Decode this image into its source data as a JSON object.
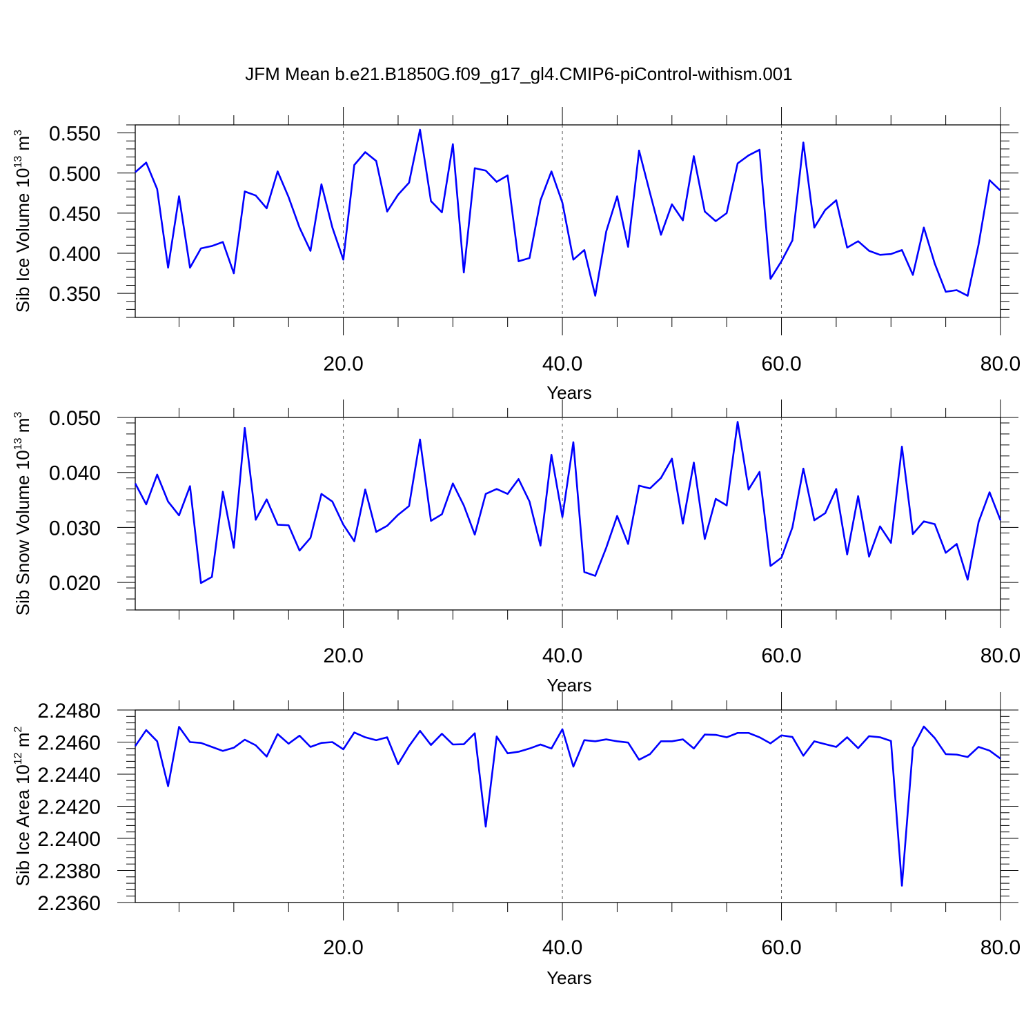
{
  "title": "JFM Mean b.e21.B1850G.f09_g17_gl4.CMIP6-piControl-withism.001",
  "chart_data": [
    {
      "type": "line",
      "xlabel": "Years",
      "ylabel": {
        "pre": "Sib Ice Volume 10",
        "exp": "13",
        "mid": " m",
        "unit_exp": "3"
      },
      "xlim": [
        1,
        80
      ],
      "ylim": [
        0.32,
        0.56
      ],
      "xticks": [
        "20.0",
        "40.0",
        "60.0",
        "80.0"
      ],
      "yticks": [
        "0.350",
        "0.400",
        "0.450",
        "0.500",
        "0.550"
      ],
      "color": "#0000ff",
      "x_start": 1,
      "values": [
        0.501,
        0.513,
        0.48,
        0.382,
        0.471,
        0.382,
        0.406,
        0.409,
        0.414,
        0.375,
        0.477,
        0.472,
        0.456,
        0.502,
        0.47,
        0.432,
        0.403,
        0.486,
        0.432,
        0.392,
        0.51,
        0.526,
        0.515,
        0.452,
        0.473,
        0.488,
        0.554,
        0.465,
        0.451,
        0.536,
        0.376,
        0.506,
        0.503,
        0.489,
        0.497,
        0.39,
        0.394,
        0.466,
        0.502,
        0.463,
        0.392,
        0.404,
        0.347,
        0.427,
        0.471,
        0.408,
        0.528,
        0.475,
        0.423,
        0.461,
        0.441,
        0.521,
        0.452,
        0.44,
        0.45,
        0.512,
        0.522,
        0.529,
        0.368,
        0.39,
        0.416,
        0.538,
        0.432,
        0.454,
        0.466,
        0.407,
        0.415,
        0.403,
        0.398,
        0.399,
        0.404,
        0.373,
        0.432,
        0.387,
        0.352,
        0.354,
        0.347,
        0.411,
        0.491,
        0.478
      ]
    },
    {
      "type": "line",
      "xlabel": "Years",
      "ylabel": {
        "pre": "Sib Snow Volume 10",
        "exp": "13",
        "mid": " m",
        "unit_exp": "3"
      },
      "xlim": [
        1,
        80
      ],
      "ylim": [
        0.015,
        0.05
      ],
      "xticks": [
        "20.0",
        "40.0",
        "60.0",
        "80.0"
      ],
      "yticks": [
        "0.020",
        "0.030",
        "0.040",
        "0.050"
      ],
      "color": "#0000ff",
      "x_start": 1,
      "values": [
        0.038,
        0.0342,
        0.0396,
        0.0347,
        0.0322,
        0.0375,
        0.0199,
        0.021,
        0.0365,
        0.0263,
        0.0481,
        0.0314,
        0.0351,
        0.0305,
        0.0304,
        0.0258,
        0.0281,
        0.0361,
        0.0347,
        0.0305,
        0.0275,
        0.0369,
        0.0292,
        0.0303,
        0.0323,
        0.0339,
        0.046,
        0.0312,
        0.0324,
        0.038,
        0.034,
        0.0287,
        0.0361,
        0.037,
        0.0361,
        0.0388,
        0.0347,
        0.0267,
        0.0432,
        0.0319,
        0.0455,
        0.0219,
        0.0212,
        0.0263,
        0.0321,
        0.027,
        0.0376,
        0.0371,
        0.039,
        0.0425,
        0.0307,
        0.0418,
        0.0279,
        0.0352,
        0.034,
        0.0492,
        0.0369,
        0.0401,
        0.023,
        0.0245,
        0.03,
        0.0407,
        0.0313,
        0.0326,
        0.037,
        0.0251,
        0.0357,
        0.0247,
        0.0302,
        0.0272,
        0.0447,
        0.0288,
        0.0311,
        0.0306,
        0.0254,
        0.027,
        0.0205,
        0.031,
        0.0364,
        0.0313
      ]
    },
    {
      "type": "line",
      "xlabel": "Years",
      "ylabel": {
        "pre": "Sib Ice Area 10",
        "exp": "12",
        "mid": " m",
        "unit_exp": "2"
      },
      "xlim": [
        1,
        80
      ],
      "ylim": [
        2.236,
        2.248
      ],
      "xticks": [
        "20.0",
        "40.0",
        "60.0",
        "80.0"
      ],
      "yticks": [
        "2.2360",
        "2.2380",
        "2.2400",
        "2.2420",
        "2.2440",
        "2.2460",
        "2.2480"
      ],
      "color": "#0000ff",
      "x_start": 1,
      "values": [
        2.24575,
        2.24675,
        2.24605,
        2.24325,
        2.24695,
        2.246,
        2.24595,
        2.2457,
        2.24545,
        2.24565,
        2.24615,
        2.2458,
        2.2451,
        2.2465,
        2.2459,
        2.2464,
        2.2457,
        2.24595,
        2.246,
        2.24555,
        2.2466,
        2.2463,
        2.24612,
        2.2463,
        2.24462,
        2.24575,
        2.2467,
        2.24582,
        2.24652,
        2.24585,
        2.24587,
        2.24655,
        2.24073,
        2.24635,
        2.2453,
        2.2454,
        2.2456,
        2.24585,
        2.2456,
        2.2468,
        2.24447,
        2.24612,
        2.24605,
        2.24617,
        2.24605,
        2.24597,
        2.2449,
        2.24525,
        2.24605,
        2.24605,
        2.24617,
        2.2456,
        2.24647,
        2.24645,
        2.2463,
        2.24657,
        2.24657,
        2.2463,
        2.24592,
        2.24642,
        2.24632,
        2.24515,
        2.24605,
        2.24587,
        2.2457,
        2.2463,
        2.24562,
        2.24637,
        2.2463,
        2.24607,
        2.23705,
        2.24565,
        2.24697,
        2.24625,
        2.24525,
        2.24522,
        2.24507,
        2.2457,
        2.24547,
        2.24497
      ]
    }
  ]
}
